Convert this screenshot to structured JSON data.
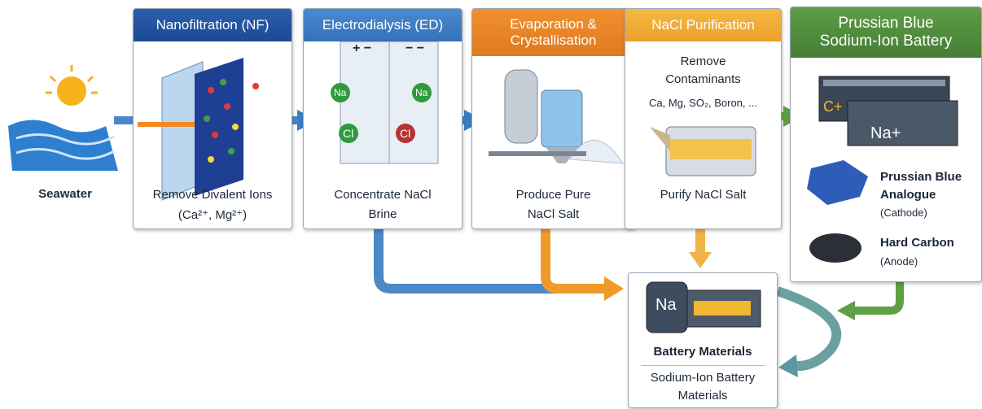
{
  "source": {
    "label": "Seawater"
  },
  "stages": [
    {
      "title": "Nanofiltration (NF)",
      "caption": [
        "Remove Divalent Ions",
        "(Ca²⁺, Mg²⁺)"
      ]
    },
    {
      "title": "Electrodialysis (ED)",
      "polarity": [
        "+ −",
        "− −"
      ],
      "ions": [
        "Na",
        "Na",
        "Cl",
        "Cl"
      ],
      "caption": [
        "Concentrate NaCl",
        "Brine"
      ]
    },
    {
      "title": [
        "Evaporation &",
        "Crystallisation"
      ],
      "caption": [
        "Produce Pure",
        "NaCl Salt"
      ]
    },
    {
      "title": "NaCl Purification",
      "subtitle": [
        "Remove",
        "Contaminants"
      ],
      "contaminants": "Ca, Mg, SO₂, Boron, ...",
      "caption": "Purify NaCl Salt"
    }
  ],
  "battery": {
    "title": [
      "Prussian Blue",
      "Sodium-Ion Battery"
    ],
    "cell_labels": [
      "C+",
      "Na+"
    ],
    "materials": [
      {
        "name": [
          "Prussian Blue",
          "Analogue"
        ],
        "role": "(Cathode)"
      },
      {
        "name": "Hard Carbon",
        "role": "(Anode)"
      }
    ]
  },
  "output": {
    "cell_label": "Na",
    "title": "Battery Materials",
    "subtitle": [
      "Sodium-Ion Battery",
      "Materials"
    ]
  }
}
